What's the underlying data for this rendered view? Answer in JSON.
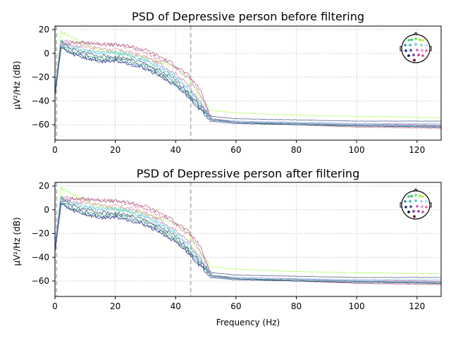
{
  "figure": {
    "background": "#ffffff"
  },
  "chart_data": [
    {
      "type": "line",
      "title": "PSD of Depressive person before filtering",
      "xlabel": "",
      "ylabel": "µV²/Hz (dB)",
      "xlim": [
        0,
        128
      ],
      "ylim": [
        -73,
        23
      ],
      "xticks": [
        0,
        20,
        40,
        60,
        80,
        100,
        120
      ],
      "yticks": [
        20,
        0,
        -20,
        -40,
        -60
      ],
      "grid": true,
      "grid_color": "#b0b0b0",
      "vlines": [
        0.5,
        45
      ],
      "vline_color": "#bdbdbd",
      "sensor_inset": "top-right",
      "series": [
        {
          "color": "#aaff55",
          "values": [
            -32,
            18,
            14,
            8,
            3,
            1,
            -1,
            -4,
            -7,
            -12,
            -20,
            -35,
            -48,
            -50,
            -52,
            -53,
            -54
          ]
        },
        {
          "color": "#cc77aa",
          "values": [
            -30,
            10,
            10,
            9,
            8,
            7,
            5,
            1,
            -5,
            -12,
            -20,
            -33,
            -55,
            -57,
            -58,
            -59,
            -60
          ]
        },
        {
          "color": "#dd8899",
          "values": [
            -33,
            8,
            7,
            6,
            4,
            3,
            1,
            -3,
            -9,
            -17,
            -26,
            -40,
            -56,
            -58,
            -59,
            -60,
            -61
          ]
        },
        {
          "color": "#aa5577",
          "values": [
            -28,
            9,
            9,
            9,
            8,
            7,
            6,
            3,
            -3,
            -10,
            -18,
            -30,
            -55,
            -58,
            -60,
            -62,
            -63
          ]
        },
        {
          "color": "#33aa66",
          "values": [
            -34,
            7,
            2,
            -2,
            -5,
            -4,
            -6,
            -10,
            -16,
            -25,
            -33,
            -45,
            -56,
            -58,
            -60,
            -61,
            -62
          ]
        },
        {
          "color": "#44ccbb",
          "values": [
            -32,
            10,
            5,
            2,
            0,
            0,
            -2,
            -6,
            -12,
            -20,
            -30,
            -42,
            -56,
            -58,
            -59,
            -60,
            -61
          ]
        },
        {
          "color": "#4466aa",
          "values": [
            -35,
            6,
            1,
            -3,
            -6,
            -5,
            -8,
            -12,
            -18,
            -27,
            -35,
            -46,
            -56,
            -58,
            -59,
            -60,
            -61
          ]
        },
        {
          "color": "#445588",
          "values": [
            -31,
            9,
            4,
            0,
            -2,
            -3,
            -5,
            -9,
            -15,
            -23,
            -32,
            -44,
            -53,
            -55,
            -56,
            -57,
            -57
          ]
        },
        {
          "color": "#223377",
          "values": [
            -36,
            5,
            0,
            -4,
            -7,
            -6,
            -9,
            -13,
            -19,
            -28,
            -36,
            -47,
            -57,
            -59,
            -60,
            -61,
            -62
          ]
        },
        {
          "color": "#88bbee",
          "values": [
            -30,
            11,
            6,
            3,
            1,
            1,
            -1,
            -5,
            -11,
            -19,
            -28,
            -40,
            -55,
            -57,
            -58,
            -59,
            -59
          ]
        }
      ]
    },
    {
      "type": "line",
      "title": "PSD of Depressive person after filtering",
      "xlabel": "Frequency (Hz)",
      "ylabel": "µV²/Hz (dB)",
      "xlim": [
        0,
        128
      ],
      "ylim": [
        -73,
        23
      ],
      "xticks": [
        0,
        20,
        40,
        60,
        80,
        100,
        120
      ],
      "yticks": [
        20,
        0,
        -20,
        -40,
        -60
      ],
      "grid": true,
      "grid_color": "#b0b0b0",
      "vlines": [
        0.5,
        45
      ],
      "vline_color": "#bdbdbd",
      "sensor_inset": "top-right",
      "series": [
        {
          "color": "#aaff55",
          "values": [
            -32,
            18,
            14,
            8,
            3,
            1,
            -1,
            -4,
            -7,
            -12,
            -20,
            -35,
            -48,
            -50,
            -52,
            -53,
            -54
          ]
        },
        {
          "color": "#cc77aa",
          "values": [
            -30,
            10,
            10,
            9,
            8,
            7,
            5,
            1,
            -5,
            -12,
            -20,
            -33,
            -55,
            -57,
            -58,
            -59,
            -60
          ]
        },
        {
          "color": "#dd8899",
          "values": [
            -33,
            8,
            7,
            6,
            4,
            3,
            1,
            -3,
            -9,
            -17,
            -26,
            -40,
            -56,
            -58,
            -59,
            -60,
            -61
          ]
        },
        {
          "color": "#aa5577",
          "values": [
            -28,
            9,
            9,
            9,
            8,
            7,
            6,
            3,
            -3,
            -10,
            -18,
            -30,
            -55,
            -58,
            -60,
            -62,
            -63
          ]
        },
        {
          "color": "#33aa66",
          "values": [
            -34,
            7,
            2,
            -2,
            -5,
            -4,
            -6,
            -10,
            -16,
            -25,
            -33,
            -45,
            -56,
            -58,
            -60,
            -61,
            -62
          ]
        },
        {
          "color": "#44ccbb",
          "values": [
            -32,
            10,
            5,
            2,
            0,
            0,
            -2,
            -6,
            -12,
            -20,
            -30,
            -42,
            -56,
            -58,
            -59,
            -60,
            -61
          ]
        },
        {
          "color": "#4466aa",
          "values": [
            -35,
            6,
            1,
            -3,
            -6,
            -5,
            -8,
            -12,
            -18,
            -27,
            -35,
            -46,
            -56,
            -58,
            -59,
            -60,
            -61
          ]
        },
        {
          "color": "#445588",
          "values": [
            -31,
            9,
            4,
            0,
            -2,
            -3,
            -5,
            -9,
            -15,
            -23,
            -32,
            -44,
            -53,
            -55,
            -56,
            -57,
            -57
          ]
        },
        {
          "color": "#223377",
          "values": [
            -36,
            5,
            0,
            -4,
            -7,
            -6,
            -9,
            -13,
            -19,
            -28,
            -36,
            -47,
            -57,
            -59,
            -60,
            -61,
            -62
          ]
        },
        {
          "color": "#88bbee",
          "values": [
            -30,
            11,
            6,
            3,
            1,
            1,
            -1,
            -5,
            -11,
            -19,
            -28,
            -40,
            -55,
            -57,
            -58,
            -59,
            -59
          ]
        }
      ],
      "shared_x": [
        0,
        2,
        5,
        10,
        15,
        20,
        25,
        30,
        35,
        40,
        44,
        48,
        52,
        60,
        80,
        100,
        128
      ]
    }
  ],
  "sensor_layout": {
    "head_color": "#000000",
    "dots": [
      {
        "c": "#33dd77"
      },
      {
        "c": "#22cc66"
      },
      {
        "c": "#55ee55"
      },
      {
        "c": "#99ee44"
      },
      {
        "c": "#ccee33"
      },
      {
        "c": "#2288aa"
      },
      {
        "c": "#33bbbb"
      },
      {
        "c": "#55ccaa"
      },
      {
        "c": "#99ccdd"
      },
      {
        "c": "#aaddff"
      },
      {
        "c": "#112266"
      },
      {
        "c": "#334499"
      },
      {
        "c": "#cc55cc"
      },
      {
        "c": "#dd88dd"
      },
      {
        "c": "#ee6688"
      },
      {
        "c": "#000044"
      },
      {
        "c": "#663399"
      },
      {
        "c": "#aa33aa"
      },
      {
        "c": "#dd4488"
      },
      {
        "c": "#550000"
      }
    ]
  }
}
